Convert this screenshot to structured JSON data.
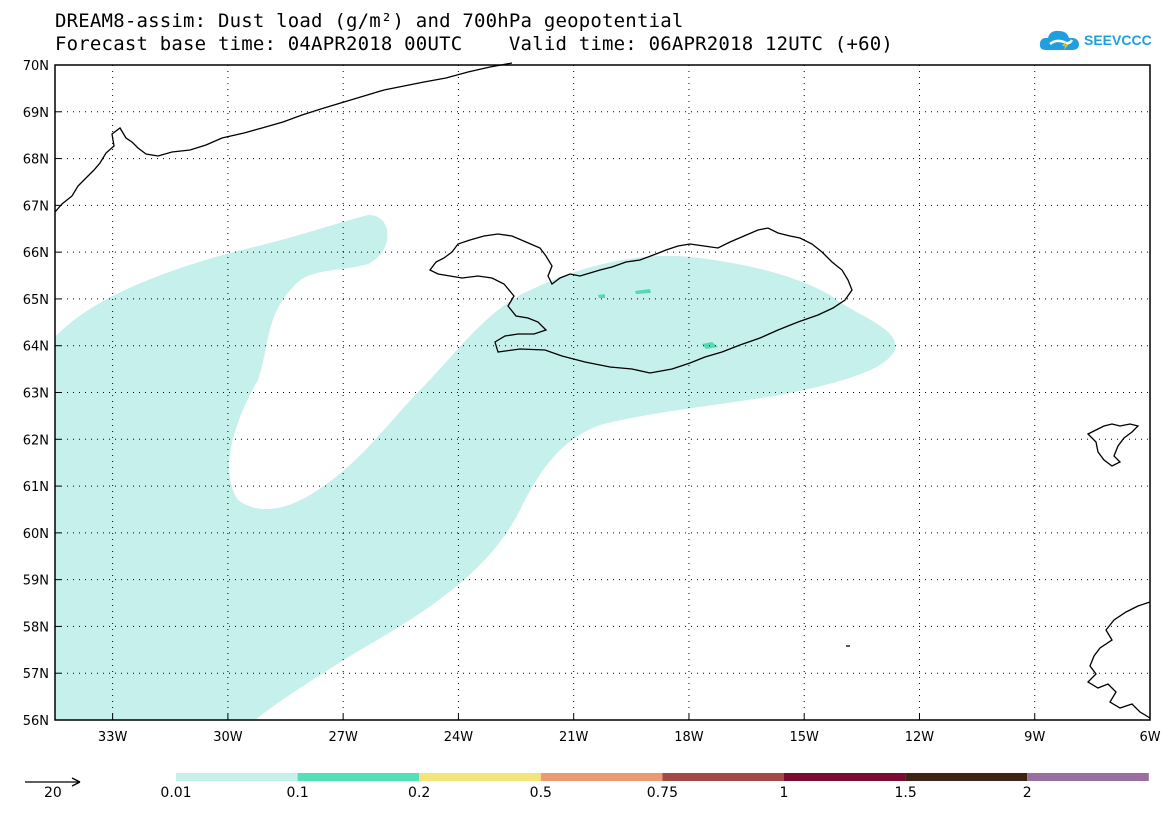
{
  "header": {
    "title_line1": "DREAM8-assim: Dust load (g/m²) and 700hPa geopotential",
    "title_line2": "Forecast base time: 04APR2018 00UTC    Valid time: 06APR2018 12UTC (+60)"
  },
  "logo": {
    "text": "SEEVCCC",
    "color": "#1f9fe0",
    "icon": "cloud-icon"
  },
  "map": {
    "lon_range": [
      -34.5,
      -6
    ],
    "lat_range": [
      56,
      70
    ],
    "lon_ticks": [
      "33W",
      "30W",
      "27W",
      "24W",
      "21W",
      "18W",
      "15W",
      "12W",
      "9W",
      "6W"
    ],
    "lat_ticks": [
      "56N",
      "57N",
      "58N",
      "59N",
      "60N",
      "61N",
      "62N",
      "63N",
      "64N",
      "65N",
      "66N",
      "67N",
      "68N",
      "69N",
      "70N"
    ],
    "grid": "dotted",
    "dust_fill_color": "#c5f0ec",
    "dust_patch_color": "#55d9b5"
  },
  "legend": {
    "vector_label": "20",
    "labels": [
      "0.01",
      "0.1",
      "0.2",
      "0.5",
      "0.75",
      "1",
      "1.5",
      "2"
    ],
    "colors": [
      "#c5f0ec",
      "#55dfb9",
      "#f3e57a",
      "#eb9a72",
      "#a44a45",
      "#7b0b30",
      "#3d2413",
      "#9a6e9e"
    ]
  }
}
